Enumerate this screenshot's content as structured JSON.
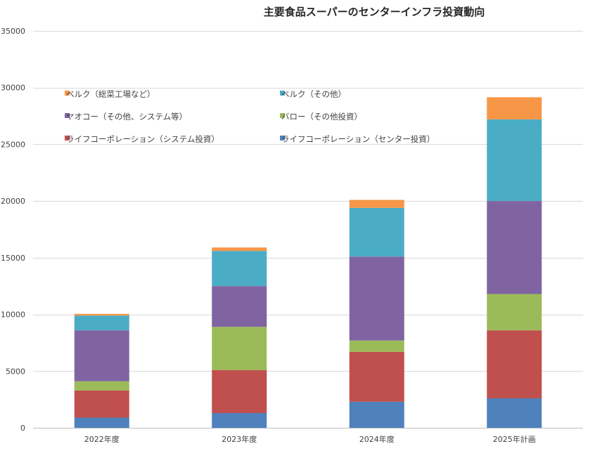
{
  "chart_data": {
    "type": "bar",
    "stacked": true,
    "title": "主要食品スーパーのセンターインフラ投資動向",
    "xlabel": "",
    "ylabel": "",
    "ylim": [
      0,
      35000
    ],
    "yticks": [
      0,
      5000,
      10000,
      15000,
      20000,
      25000,
      30000,
      35000
    ],
    "grid": true,
    "legend_position": "upper-left inside plot, 2 columns",
    "categories": [
      "2022年度",
      "2023年度",
      "2024年度",
      "2025年計画"
    ],
    "series": [
      {
        "name": "ライフコーポレーション（センター投資）",
        "color": "#4f81bd",
        "values": [
          900,
          1300,
          2300,
          2600
        ]
      },
      {
        "name": "ライフコーポレーション（システム投資）",
        "color": "#c0504d",
        "values": [
          2400,
          3800,
          4400,
          6000
        ]
      },
      {
        "name": "バロー（その他投資）",
        "color": "#9bbb59",
        "values": [
          800,
          3800,
          1000,
          3200
        ]
      },
      {
        "name": "ヤオコー（その他、システム等）",
        "color": "#8064a2",
        "values": [
          4500,
          3600,
          7400,
          8200
        ]
      },
      {
        "name": "ベルク（その他）",
        "color": "#4bacc6",
        "values": [
          1300,
          3100,
          4300,
          7200
        ]
      },
      {
        "name": "ベルク（総菜工場など）",
        "color": "#f79646",
        "values": [
          150,
          300,
          700,
          1950
        ]
      }
    ],
    "legend_order": [
      5,
      4,
      3,
      2,
      1,
      0
    ]
  }
}
